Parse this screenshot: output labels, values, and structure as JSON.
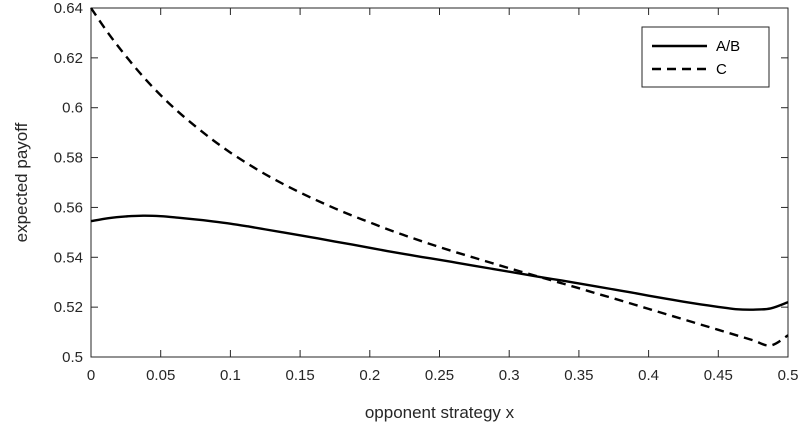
{
  "chart_data": {
    "type": "line",
    "title": "",
    "xlabel": "opponent strategy x",
    "ylabel": "expected payoff",
    "xlim": [
      0,
      0.5
    ],
    "ylim": [
      0.5,
      0.64
    ],
    "xticks": [
      0,
      0.05,
      0.1,
      0.15,
      0.2,
      0.25,
      0.3,
      0.35,
      0.4,
      0.45,
      0.5
    ],
    "xtick_labels": [
      "0",
      "0.05",
      "0.1",
      "0.15",
      "0.2",
      "0.25",
      "0.3",
      "0.35",
      "0.4",
      "0.45",
      "0.5"
    ],
    "yticks": [
      0.5,
      0.52,
      0.54,
      0.56,
      0.58,
      0.6,
      0.62,
      0.64
    ],
    "ytick_labels": [
      "0.5",
      "0.52",
      "0.54",
      "0.56",
      "0.58",
      "0.6",
      "0.62",
      "0.64"
    ],
    "grid": false,
    "legend_position": "top-right",
    "series": [
      {
        "name": "A/B",
        "style": "solid",
        "color": "#000000",
        "x": [
          0,
          0.0125,
          0.025,
          0.0375,
          0.05,
          0.0625,
          0.075,
          0.0875,
          0.1,
          0.1125,
          0.125,
          0.1375,
          0.15,
          0.1625,
          0.175,
          0.1875,
          0.2,
          0.2125,
          0.225,
          0.2375,
          0.25,
          0.2625,
          0.275,
          0.2875,
          0.3,
          0.3125,
          0.325,
          0.3375,
          0.35,
          0.3625,
          0.375,
          0.3875,
          0.4,
          0.4125,
          0.425,
          0.4375,
          0.45,
          0.4625,
          0.475,
          0.4875,
          0.5
        ],
        "y": [
          0.5545,
          0.5557,
          0.5564,
          0.5567,
          0.5565,
          0.5559,
          0.5552,
          0.5544,
          0.5535,
          0.5524,
          0.5512,
          0.55,
          0.5488,
          0.5476,
          0.5463,
          0.5451,
          0.5438,
          0.5425,
          0.5413,
          0.5401,
          0.539,
          0.5378,
          0.5366,
          0.5354,
          0.5342,
          0.533,
          0.5318,
          0.5307,
          0.5295,
          0.5283,
          0.5271,
          0.5259,
          0.5246,
          0.5234,
          0.5222,
          0.5211,
          0.5201,
          0.5192,
          0.519,
          0.5195,
          0.522
        ]
      },
      {
        "name": "C",
        "style": "dashed",
        "color": "#000000",
        "x": [
          0,
          0.0125,
          0.025,
          0.0375,
          0.05,
          0.0625,
          0.075,
          0.0875,
          0.1,
          0.1125,
          0.125,
          0.1375,
          0.15,
          0.1625,
          0.175,
          0.1875,
          0.2,
          0.2125,
          0.225,
          0.2375,
          0.25,
          0.2625,
          0.275,
          0.2875,
          0.3,
          0.3125,
          0.325,
          0.3375,
          0.35,
          0.3625,
          0.375,
          0.3875,
          0.4,
          0.4125,
          0.425,
          0.4375,
          0.45,
          0.4625,
          0.475,
          0.4875,
          0.5
        ],
        "y": [
          0.64,
          0.6298,
          0.6207,
          0.6124,
          0.605,
          0.5984,
          0.5925,
          0.587,
          0.582,
          0.5775,
          0.5733,
          0.5695,
          0.566,
          0.5627,
          0.5596,
          0.5567,
          0.554,
          0.5513,
          0.5488,
          0.5464,
          0.5441,
          0.5419,
          0.5398,
          0.5377,
          0.5356,
          0.5336,
          0.5316,
          0.5296,
          0.5276,
          0.5255,
          0.5235,
          0.5214,
          0.5193,
          0.5172,
          0.5151,
          0.513,
          0.5109,
          0.5088,
          0.5067,
          0.5046,
          0.5087
        ]
      }
    ]
  }
}
